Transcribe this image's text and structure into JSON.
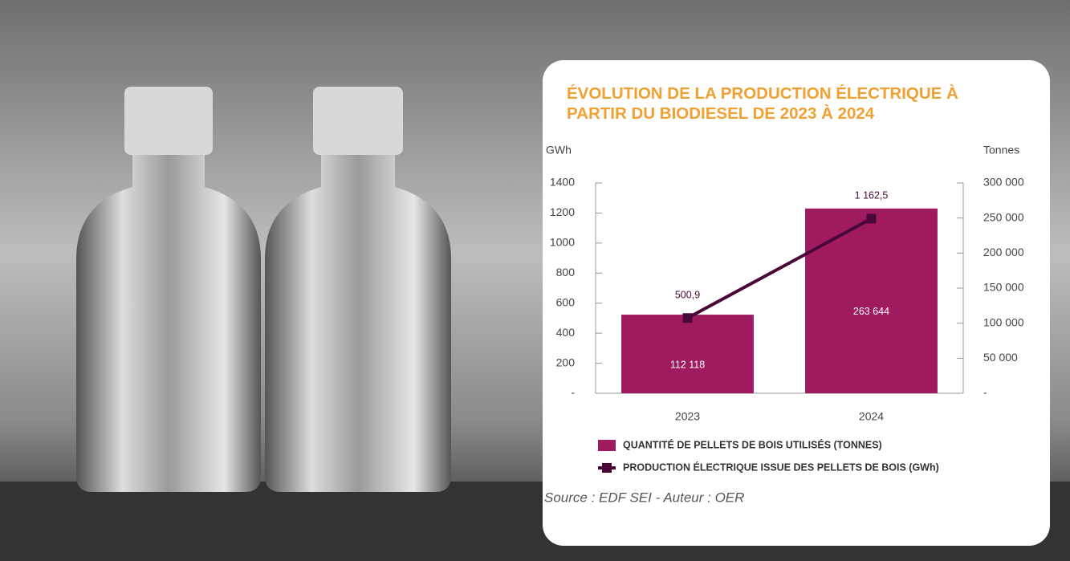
{
  "chart_data": {
    "type": "bar",
    "title": "ÉVOLUTION DE LA PRODUCTION ÉLECTRIQUE À PARTIR DU BIODIESEL DE 2023 À 2024",
    "y_label": "GWh",
    "y2_label": "Tonnes",
    "categories": [
      "2023",
      "2024"
    ],
    "series": [
      {
        "name": "QUANTITÉ DE PELLETS DE BOIS UTILISÉS (TONNES)",
        "type": "bar",
        "axis": "y2",
        "color": "#a01a60",
        "values": [
          112118,
          263644
        ],
        "value_labels": [
          "112 118",
          "263 644"
        ]
      },
      {
        "name": "PRODUCTION ÉLECTRIQUE ISSUE DES PELLETS DE BOIS (GWh)",
        "type": "line",
        "axis": "y",
        "color": "#4a0838",
        "values": [
          500.9,
          1162.5
        ],
        "value_labels": [
          "500,9",
          "1 162,5"
        ]
      }
    ],
    "ylim": [
      0,
      1400
    ],
    "yticks": [
      {
        "value": 0,
        "label": "-"
      },
      200,
      400,
      600,
      800,
      1000,
      1200,
      1400
    ],
    "y2lim": [
      0,
      300000
    ],
    "y2ticks": [
      {
        "value": 0,
        "label": "-"
      },
      {
        "value": 50000,
        "label": "50 000"
      },
      {
        "value": 100000,
        "label": "100 000"
      },
      {
        "value": 150000,
        "label": "150 000"
      },
      {
        "value": 200000,
        "label": "200 000"
      },
      {
        "value": 250000,
        "label": "250 000"
      },
      {
        "value": 300000,
        "label": "300 000"
      }
    ],
    "grid": false,
    "source": "Source : EDF SEI - Auteur : OER"
  }
}
